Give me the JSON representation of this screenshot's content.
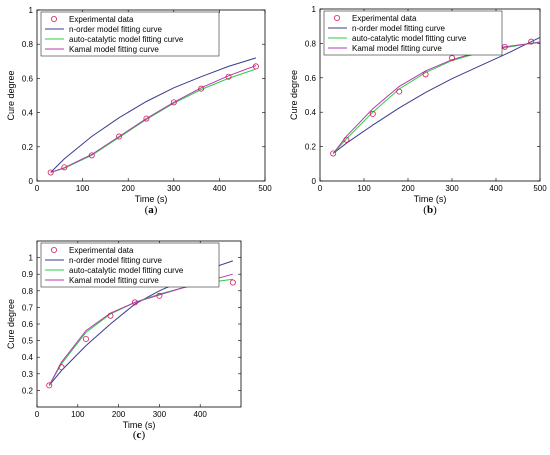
{
  "chart_data": [
    {
      "type": "line",
      "panel_label": "a",
      "xlabel": "Time (s)",
      "ylabel": "Cure degree",
      "xlim": [
        0,
        500
      ],
      "ylim": [
        0,
        1
      ],
      "xticks": [
        0,
        100,
        200,
        300,
        400,
        500
      ],
      "yticks": [
        0,
        0.2,
        0.4,
        0.6,
        0.8,
        1
      ],
      "legend_position": "top-left",
      "series": [
        {
          "name": "Experimental data",
          "kind": "markers",
          "color": "#d81b60",
          "x": [
            30,
            60,
            120,
            180,
            240,
            300,
            360,
            420,
            480
          ],
          "y": [
            0.05,
            0.08,
            0.15,
            0.26,
            0.365,
            0.46,
            0.54,
            0.61,
            0.67
          ]
        },
        {
          "name": "n-order model fitting curve",
          "kind": "line",
          "color": "#3b3b8f",
          "x": [
            30,
            60,
            120,
            180,
            240,
            300,
            360,
            420,
            480
          ],
          "y": [
            0.05,
            0.13,
            0.26,
            0.37,
            0.465,
            0.545,
            0.61,
            0.67,
            0.72
          ]
        },
        {
          "name": "auto-catalytic model fitting curve",
          "kind": "line",
          "color": "#2ecc40",
          "x": [
            30,
            60,
            120,
            180,
            240,
            300,
            360,
            420,
            480
          ],
          "y": [
            0.05,
            0.075,
            0.15,
            0.255,
            0.36,
            0.455,
            0.535,
            0.6,
            0.655
          ]
        },
        {
          "name": "Kamal model fitting curve",
          "kind": "line",
          "color": "#b13bb3",
          "x": [
            30,
            60,
            120,
            180,
            240,
            300,
            360,
            420,
            480
          ],
          "y": [
            0.05,
            0.078,
            0.155,
            0.26,
            0.365,
            0.46,
            0.545,
            0.615,
            0.675
          ]
        }
      ]
    },
    {
      "type": "line",
      "panel_label": "b",
      "xlabel": "Time (s)",
      "ylabel": "Cure degree",
      "xlim": [
        0,
        500
      ],
      "ylim": [
        0,
        1
      ],
      "xticks": [
        0,
        100,
        200,
        300,
        400,
        500
      ],
      "yticks": [
        0,
        0.2,
        0.4,
        0.6,
        0.8,
        1
      ],
      "legend_position": "top-left",
      "series": [
        {
          "name": "Experimental data",
          "kind": "markers",
          "color": "#d81b60",
          "x": [
            30,
            60,
            120,
            180,
            240,
            300,
            360,
            420,
            480
          ],
          "y": [
            0.16,
            0.24,
            0.39,
            0.52,
            0.62,
            0.715,
            0.76,
            0.78,
            0.81
          ]
        },
        {
          "name": "n-order model fitting curve",
          "kind": "line",
          "color": "#3b3b8f",
          "x": [
            30,
            60,
            120,
            180,
            240,
            300,
            360,
            420,
            480,
            500
          ],
          "y": [
            0.16,
            0.22,
            0.325,
            0.425,
            0.515,
            0.595,
            0.665,
            0.735,
            0.81,
            0.835
          ]
        },
        {
          "name": "auto-catalytic model fitting curve",
          "kind": "line",
          "color": "#2ecc40",
          "x": [
            30,
            60,
            120,
            180,
            240,
            300,
            360,
            420,
            480,
            500
          ],
          "y": [
            0.16,
            0.245,
            0.4,
            0.535,
            0.63,
            0.7,
            0.745,
            0.775,
            0.8,
            0.81
          ]
        },
        {
          "name": "Kamal model fitting curve",
          "kind": "line",
          "color": "#b13bb3",
          "x": [
            30,
            60,
            120,
            180,
            240,
            300,
            360,
            420,
            480,
            500
          ],
          "y": [
            0.16,
            0.26,
            0.42,
            0.55,
            0.64,
            0.705,
            0.75,
            0.78,
            0.8,
            0.805
          ]
        }
      ]
    },
    {
      "type": "line",
      "panel_label": "c",
      "xlabel": "Time (s)",
      "ylabel": "Cure degree",
      "xlim": [
        0,
        500
      ],
      "ylim": [
        0.1,
        1.1
      ],
      "xticks": [
        0,
        100,
        200,
        300,
        400
      ],
      "yticks": [
        0.2,
        0.3,
        0.4,
        0.5,
        0.6,
        0.7,
        0.8,
        0.9,
        1
      ],
      "legend_position": "top-left",
      "series": [
        {
          "name": "Experimental data",
          "kind": "markers",
          "color": "#d81b60",
          "x": [
            30,
            60,
            120,
            180,
            240,
            300,
            360,
            420,
            480
          ],
          "y": [
            0.23,
            0.34,
            0.51,
            0.65,
            0.73,
            0.77,
            0.84,
            0.85,
            0.85
          ]
        },
        {
          "name": "n-order model fitting curve",
          "kind": "line",
          "color": "#3b3b8f",
          "x": [
            30,
            60,
            120,
            180,
            240,
            300,
            360,
            420,
            480
          ],
          "y": [
            0.23,
            0.32,
            0.47,
            0.6,
            0.72,
            0.8,
            0.865,
            0.93,
            0.98
          ]
        },
        {
          "name": "auto-catalytic model fitting curve",
          "kind": "line",
          "color": "#2ecc40",
          "x": [
            30,
            60,
            120,
            180,
            240,
            300,
            360,
            420,
            480
          ],
          "y": [
            0.23,
            0.36,
            0.55,
            0.66,
            0.73,
            0.78,
            0.82,
            0.85,
            0.87
          ]
        },
        {
          "name": "Kamal model fitting curve",
          "kind": "line",
          "color": "#b13bb3",
          "x": [
            30,
            60,
            120,
            180,
            240,
            300,
            360,
            420,
            480
          ],
          "y": [
            0.23,
            0.37,
            0.56,
            0.665,
            0.73,
            0.775,
            0.82,
            0.86,
            0.9
          ]
        }
      ]
    }
  ]
}
